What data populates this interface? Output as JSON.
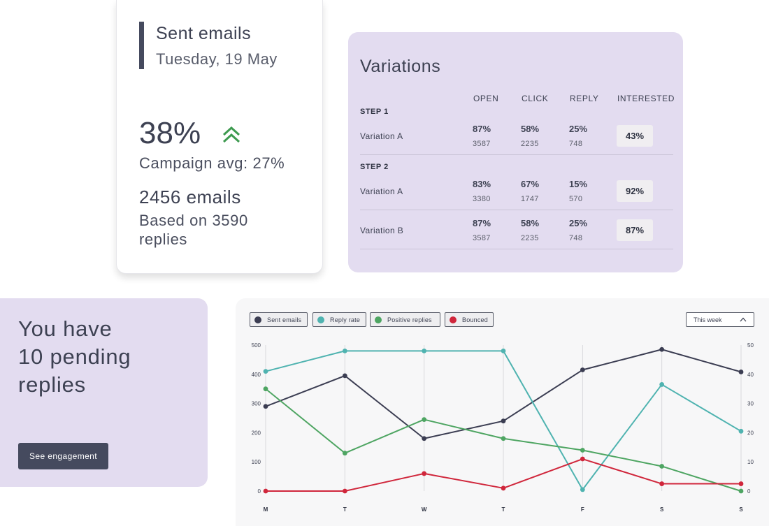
{
  "sent_card": {
    "title": "Sent emails",
    "date": "Tuesday, 19 May",
    "rate": "38%",
    "trend_icon": "double-chevron-up-icon",
    "campaign_avg": "Campaign avg: 27%",
    "emails": "2456 emails",
    "based_on": "Based on 3590 replies"
  },
  "variations": {
    "title": "Variations",
    "columns": {
      "open": "OPEN",
      "click": "CLICK",
      "reply": "REPLY",
      "interested": "INTERESTED"
    },
    "steps": [
      {
        "label": "STEP 1",
        "rows": [
          {
            "name": "Variation A",
            "open_pct": "87%",
            "open_n": "3587",
            "click_pct": "58%",
            "click_n": "2235",
            "reply_pct": "25%",
            "reply_n": "748",
            "interested": "43%"
          }
        ]
      },
      {
        "label": "STEP 2",
        "rows": [
          {
            "name": "Variation A",
            "open_pct": "83%",
            "open_n": "3380",
            "click_pct": "67%",
            "click_n": "1747",
            "reply_pct": "15%",
            "reply_n": "570",
            "interested": "92%"
          },
          {
            "name": "Variation B",
            "open_pct": "87%",
            "open_n": "3587",
            "click_pct": "58%",
            "click_n": "2235",
            "reply_pct": "25%",
            "reply_n": "748",
            "interested": "87%"
          }
        ]
      }
    ]
  },
  "pending": {
    "line1": "You have",
    "line2": "10 pending",
    "line3": "replies",
    "button": "See engagement"
  },
  "colors": {
    "sent_emails": "#3b3d52",
    "reply_rate": "#4fb3b0",
    "positive_replies": "#4ea562",
    "bounced": "#d0263b",
    "trend_up": "#3d9a4f"
  },
  "chart_legend": [
    "Sent emails",
    "Reply rate",
    "Positive replies",
    "Bounced"
  ],
  "chart_range": "This week",
  "chart_data": {
    "type": "line",
    "categories": [
      "M",
      "T",
      "W",
      "T",
      "F",
      "S",
      "S"
    ],
    "ylim_left": [
      0,
      500
    ],
    "yticks_left": [
      "0",
      "100",
      "200",
      "300",
      "400",
      "500"
    ],
    "ylim_right": [
      0,
      50
    ],
    "yticks_right": [
      "0",
      "10",
      "20",
      "30",
      "40",
      "50"
    ],
    "grid": "vertical",
    "legend_position": "top-left",
    "series": [
      {
        "name": "Sent emails",
        "color": "#3b3d52",
        "values": [
          290,
          395,
          180,
          240,
          415,
          485,
          408
        ]
      },
      {
        "name": "Reply rate",
        "color": "#4fb3b0",
        "values": [
          410,
          480,
          480,
          480,
          5,
          365,
          205
        ]
      },
      {
        "name": "Positive replies",
        "color": "#4ea562",
        "values": [
          350,
          130,
          245,
          180,
          140,
          85,
          0
        ]
      },
      {
        "name": "Bounced",
        "color": "#d0263b",
        "values": [
          0,
          0,
          60,
          10,
          110,
          25,
          25
        ]
      }
    ]
  }
}
